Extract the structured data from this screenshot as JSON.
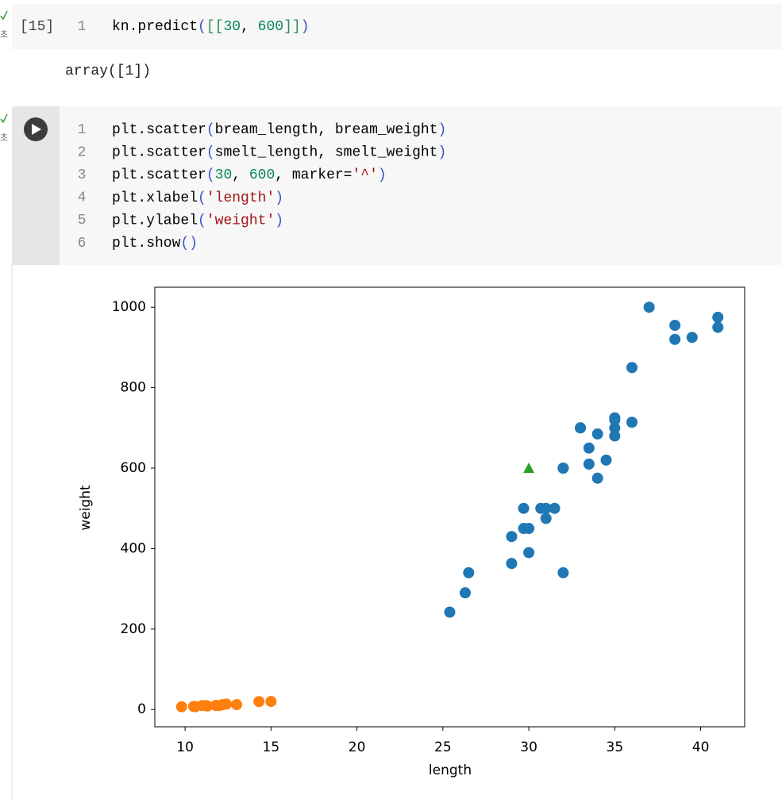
{
  "cells": [
    {
      "status": "초",
      "label": "[15]",
      "lines": [
        {
          "num": "1",
          "tokens": [
            [
              "kn.predict",
              "#000000"
            ],
            [
              "(",
              "#3a53c5"
            ],
            [
              "[[",
              "#2e8b57"
            ],
            [
              "30",
              "#098658"
            ],
            [
              ", ",
              "#000000"
            ],
            [
              "600",
              "#098658"
            ],
            [
              "]]",
              "#2e8b57"
            ],
            [
              ")",
              "#3a53c5"
            ]
          ]
        }
      ],
      "output": "array([1])"
    },
    {
      "status": "초",
      "lines": [
        {
          "num": "1",
          "tokens": [
            [
              "plt.scatter",
              "#000000"
            ],
            [
              "(",
              "#3a53c5"
            ],
            [
              "bream_length, bream_weight",
              "#000000"
            ],
            [
              ")",
              "#3a53c5"
            ]
          ]
        },
        {
          "num": "2",
          "tokens": [
            [
              "plt.scatter",
              "#000000"
            ],
            [
              "(",
              "#3a53c5"
            ],
            [
              "smelt_length, smelt_weight",
              "#000000"
            ],
            [
              ")",
              "#3a53c5"
            ]
          ]
        },
        {
          "num": "3",
          "tokens": [
            [
              "plt.scatter",
              "#000000"
            ],
            [
              "(",
              "#3a53c5"
            ],
            [
              "30",
              "#098658"
            ],
            [
              ", ",
              "#000000"
            ],
            [
              "600",
              "#098658"
            ],
            [
              ", marker=",
              "#000000"
            ],
            [
              "'^'",
              "#a31515"
            ],
            [
              ")",
              "#3a53c5"
            ]
          ]
        },
        {
          "num": "4",
          "tokens": [
            [
              "plt.xlabel",
              "#000000"
            ],
            [
              "(",
              "#3a53c5"
            ],
            [
              "'length'",
              "#a31515"
            ],
            [
              ")",
              "#3a53c5"
            ]
          ]
        },
        {
          "num": "5",
          "tokens": [
            [
              "plt.ylabel",
              "#000000"
            ],
            [
              "(",
              "#3a53c5"
            ],
            [
              "'weight'",
              "#a31515"
            ],
            [
              ")",
              "#3a53c5"
            ]
          ]
        },
        {
          "num": "6",
          "tokens": [
            [
              "plt.show",
              "#000000"
            ],
            [
              "()",
              "#3a53c5"
            ]
          ]
        }
      ]
    }
  ],
  "chart_data": {
    "type": "scatter",
    "xlabel": "length",
    "ylabel": "weight",
    "xlim": [
      8.24,
      42.56
    ],
    "ylim": [
      -43,
      1049.7
    ],
    "xticks": [
      10,
      15,
      20,
      25,
      30,
      35,
      40
    ],
    "yticks": [
      0,
      200,
      400,
      600,
      800,
      1000
    ],
    "series": [
      {
        "color": "#1f77b4",
        "marker": "o",
        "x": [
          25.4,
          26.3,
          26.5,
          29.0,
          29.0,
          29.7,
          29.7,
          30.0,
          30.0,
          30.7,
          31.0,
          31.0,
          31.5,
          32.0,
          32.0,
          32.0,
          33.0,
          33.0,
          33.5,
          33.5,
          34.0,
          34.0,
          34.5,
          35.0,
          35.0,
          35.0,
          35.0,
          36.0,
          36.0,
          37.0,
          38.5,
          38.5,
          39.5,
          41.0,
          41.0
        ],
        "values": [
          242,
          290,
          340,
          363,
          430,
          450,
          500,
          390,
          450,
          500,
          475,
          500,
          500,
          340,
          600,
          600,
          700,
          700,
          610,
          650,
          575,
          685,
          620,
          680,
          700,
          725,
          720,
          714,
          850,
          1000,
          920,
          955,
          925,
          975,
          950
        ]
      },
      {
        "color": "#ff7f0e",
        "marker": "o",
        "x": [
          9.8,
          10.5,
          10.6,
          11.0,
          11.2,
          11.3,
          11.8,
          11.8,
          12.0,
          12.2,
          12.4,
          13.0,
          14.3,
          15.0
        ],
        "values": [
          6.7,
          7.5,
          7.0,
          9.7,
          9.8,
          8.7,
          10.0,
          9.9,
          9.8,
          12.2,
          13.4,
          12.2,
          19.7,
          19.9
        ]
      },
      {
        "color": "#2ca02c",
        "marker": "^",
        "x": [
          30
        ],
        "values": [
          600
        ]
      }
    ]
  }
}
